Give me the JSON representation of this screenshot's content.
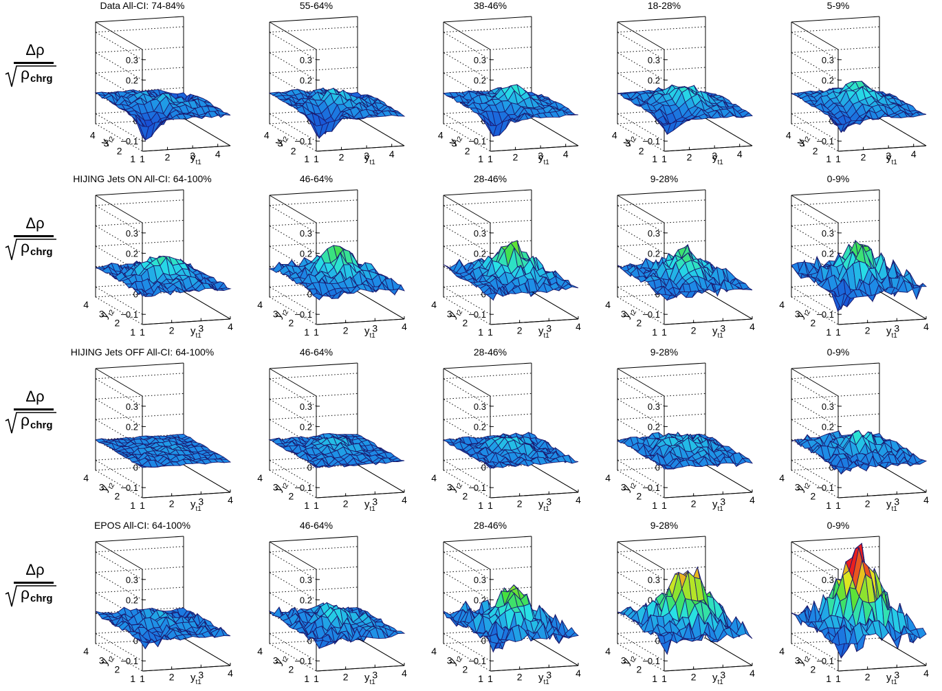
{
  "figure": {
    "z_axis_label": {
      "numerator": "Δρ",
      "root_rho": "ρ",
      "root_sub": "chrg"
    },
    "x_axis_label": {
      "main": "y",
      "sub": "t1"
    },
    "y_axis_label": {
      "main": "y",
      "sub": "t2"
    },
    "z_ticks": [
      "0.3",
      "0.2",
      "0.1",
      "0",
      "−0.1"
    ],
    "x_ticks": [
      "1",
      "2",
      "3",
      "4"
    ],
    "y_ticks": [
      "1",
      "2",
      "3",
      "4"
    ],
    "colors": {
      "surface_low": "#1e3cdc",
      "surface_mid": "#22e0e6",
      "surface_high_green": "#4ee038",
      "surface_peak": "#e61e1e",
      "mesh": "#1a1a6e"
    }
  },
  "chart_data": [
    {
      "type": "surface",
      "row": 0,
      "title": "Data All-CI: 74-84%",
      "amplitude": 0.05,
      "noise": 0.02,
      "dip": 0.1,
      "xlim": [
        1,
        4.5
      ],
      "ylim": [
        1,
        4.5
      ],
      "zlim": [
        -0.15,
        0.35
      ]
    },
    {
      "type": "surface",
      "row": 0,
      "title": "55-64%",
      "amplitude": 0.06,
      "noise": 0.02,
      "dip": 0.09,
      "xlim": [
        1,
        4.5
      ],
      "ylim": [
        1,
        4.5
      ],
      "zlim": [
        -0.15,
        0.35
      ]
    },
    {
      "type": "surface",
      "row": 0,
      "title": "38-46%",
      "amplitude": 0.08,
      "noise": 0.02,
      "dip": 0.08,
      "xlim": [
        1,
        4.5
      ],
      "ylim": [
        1,
        4.5
      ],
      "zlim": [
        -0.15,
        0.35
      ]
    },
    {
      "type": "surface",
      "row": 0,
      "title": "18-28%",
      "amplitude": 0.09,
      "noise": 0.02,
      "dip": 0.07,
      "xlim": [
        1,
        4.5
      ],
      "ylim": [
        1,
        4.5
      ],
      "zlim": [
        -0.15,
        0.35
      ]
    },
    {
      "type": "surface",
      "row": 0,
      "title": "5-9%",
      "amplitude": 0.1,
      "noise": 0.02,
      "dip": 0.06,
      "xlim": [
        1,
        4.5
      ],
      "ylim": [
        1,
        4.5
      ],
      "zlim": [
        -0.15,
        0.35
      ]
    },
    {
      "type": "surface",
      "row": 1,
      "title": "HIJING Jets ON All-CI: 64-100%",
      "amplitude": 0.1,
      "noise": 0.03,
      "dip": 0.01,
      "xlim": [
        1,
        4
      ],
      "ylim": [
        1,
        4
      ],
      "zlim": [
        -0.15,
        0.35
      ]
    },
    {
      "type": "surface",
      "row": 1,
      "title": "46-64%",
      "amplitude": 0.12,
      "noise": 0.04,
      "dip": 0.02,
      "xlim": [
        1,
        4
      ],
      "ylim": [
        1,
        4
      ],
      "zlim": [
        -0.15,
        0.35
      ]
    },
    {
      "type": "surface",
      "row": 1,
      "title": "28-46%",
      "amplitude": 0.15,
      "noise": 0.04,
      "dip": 0.02,
      "xlim": [
        1,
        4
      ],
      "ylim": [
        1,
        4
      ],
      "zlim": [
        -0.15,
        0.35
      ]
    },
    {
      "type": "surface",
      "row": 1,
      "title": "9-28%",
      "amplitude": 0.12,
      "noise": 0.04,
      "dip": 0.02,
      "xlim": [
        1,
        4
      ],
      "ylim": [
        1,
        4
      ],
      "zlim": [
        -0.15,
        0.35
      ]
    },
    {
      "type": "surface",
      "row": 1,
      "title": "0-9%",
      "amplitude": 0.15,
      "noise": 0.06,
      "dip": 0.05,
      "xlim": [
        1,
        4
      ],
      "ylim": [
        1,
        4
      ],
      "zlim": [
        -0.15,
        0.35
      ]
    },
    {
      "type": "surface",
      "row": 2,
      "title": "HIJING Jets OFF All-CI: 64-100%",
      "amplitude": 0.02,
      "noise": 0.015,
      "dip": 0.0,
      "xlim": [
        1,
        4
      ],
      "ylim": [
        1,
        4
      ],
      "zlim": [
        -0.15,
        0.35
      ]
    },
    {
      "type": "surface",
      "row": 2,
      "title": "46-64%",
      "amplitude": 0.04,
      "noise": 0.02,
      "dip": 0.0,
      "xlim": [
        1,
        4
      ],
      "ylim": [
        1,
        4
      ],
      "zlim": [
        -0.15,
        0.35
      ]
    },
    {
      "type": "surface",
      "row": 2,
      "title": "28-46%",
      "amplitude": 0.05,
      "noise": 0.025,
      "dip": 0.0,
      "xlim": [
        1,
        4
      ],
      "ylim": [
        1,
        4
      ],
      "zlim": [
        -0.15,
        0.35
      ]
    },
    {
      "type": "surface",
      "row": 2,
      "title": "9-28%",
      "amplitude": 0.06,
      "noise": 0.03,
      "dip": 0.0,
      "xlim": [
        1,
        4
      ],
      "ylim": [
        1,
        4
      ],
      "zlim": [
        -0.15,
        0.35
      ]
    },
    {
      "type": "surface",
      "row": 2,
      "title": "0-9%",
      "amplitude": 0.07,
      "noise": 0.035,
      "dip": 0.02,
      "xlim": [
        1,
        4
      ],
      "ylim": [
        1,
        4
      ],
      "zlim": [
        -0.15,
        0.35
      ]
    },
    {
      "type": "surface",
      "row": 3,
      "title": "EPOS All-CI: 64-100%",
      "amplitude": 0.03,
      "noise": 0.03,
      "dip": 0.03,
      "xlim": [
        1,
        4
      ],
      "ylim": [
        1,
        4
      ],
      "zlim": [
        -0.15,
        0.35
      ]
    },
    {
      "type": "surface",
      "row": 3,
      "title": "46-64%",
      "amplitude": 0.07,
      "noise": 0.04,
      "dip": 0.02,
      "xlim": [
        1,
        4
      ],
      "ylim": [
        1,
        4
      ],
      "zlim": [
        -0.15,
        0.35
      ]
    },
    {
      "type": "surface",
      "row": 3,
      "title": "28-46%",
      "amplitude": 0.14,
      "noise": 0.06,
      "dip": 0.02,
      "xlim": [
        1,
        4
      ],
      "ylim": [
        1,
        4
      ],
      "zlim": [
        -0.15,
        0.35
      ]
    },
    {
      "type": "surface",
      "row": 3,
      "title": "9-28%",
      "amplitude": 0.27,
      "noise": 0.06,
      "dip": 0.03,
      "xlim": [
        1,
        4
      ],
      "ylim": [
        1,
        4
      ],
      "zlim": [
        -0.15,
        0.35
      ]
    },
    {
      "type": "surface",
      "row": 3,
      "title": "0-9%",
      "amplitude": 0.32,
      "noise": 0.08,
      "dip": 0.03,
      "xlim": [
        1,
        4
      ],
      "ylim": [
        1,
        4
      ],
      "zlim": [
        -0.15,
        0.35
      ]
    }
  ]
}
